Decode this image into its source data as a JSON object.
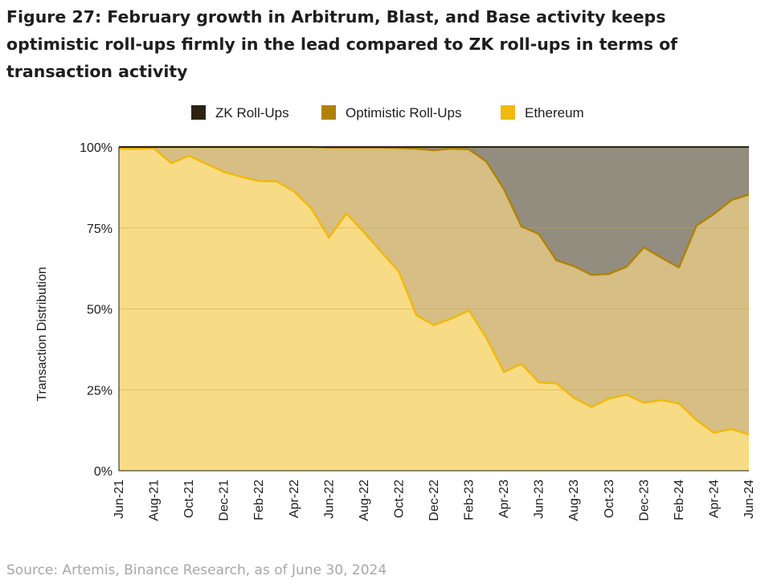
{
  "title": "Figure 27: February growth in Arbitrum, Blast, and Base activity keeps optimistic roll-ups firmly in the lead compared to ZK roll-ups in terms of transaction activity",
  "source": "Source: Artemis, Binance Research, as of June 30, 2024",
  "chart_data": {
    "type": "area",
    "stacked": true,
    "normalized": true,
    "ylabel": "Transaction Distribution",
    "ylim": [
      0,
      100
    ],
    "yticks": [
      "0%",
      "25%",
      "50%",
      "75%",
      "100%"
    ],
    "legend_position": "top-center",
    "grid": "horizontal",
    "x": [
      "Jun-21",
      "Jul-21",
      "Aug-21",
      "Sep-21",
      "Oct-21",
      "Nov-21",
      "Dec-21",
      "Jan-22",
      "Feb-22",
      "Mar-22",
      "Apr-22",
      "May-22",
      "Jun-22",
      "Jul-22",
      "Aug-22",
      "Sep-22",
      "Oct-22",
      "Nov-22",
      "Dec-22",
      "Jan-23",
      "Feb-23",
      "Mar-23",
      "Apr-23",
      "May-23",
      "Jun-23",
      "Jul-23",
      "Aug-23",
      "Sep-23",
      "Oct-23",
      "Nov-23",
      "Dec-23",
      "Jan-24",
      "Feb-24",
      "Mar-24",
      "Apr-24",
      "May-24",
      "Jun-24"
    ],
    "xtick_labels": [
      "Jun-21",
      "Aug-21",
      "Oct-21",
      "Dec-21",
      "Feb-22",
      "Apr-22",
      "Jun-22",
      "Aug-22",
      "Oct-22",
      "Dec-22",
      "Feb-23",
      "Apr-23",
      "Jun-23",
      "Aug-23",
      "Oct-23",
      "Dec-23",
      "Feb-24",
      "Apr-24",
      "Jun-24"
    ],
    "series": [
      {
        "name": "Ethereum",
        "color": "#f0b90b",
        "fill": "#f8db85",
        "values": [
          99.5,
          99.4,
          99.6,
          95,
          97.3,
          94.8,
          92.3,
          90.8,
          89.5,
          89.4,
          86.3,
          81,
          72,
          79.5,
          73.7,
          67.5,
          61.5,
          48,
          45,
          47,
          49.5,
          41,
          30.5,
          33,
          27.3,
          27,
          22.5,
          19.7,
          22.3,
          23.5,
          21,
          21.8,
          20.8,
          15.7,
          11.7,
          12.9,
          11.2
        ]
      },
      {
        "name": "Optimistic Roll-Ups",
        "color": "#b08206",
        "fill": "#d6be84",
        "values": [
          0.5,
          0.6,
          0.4,
          5,
          2.7,
          5.2,
          7.7,
          9.2,
          10.5,
          10.6,
          13.7,
          19,
          27.8,
          20.3,
          26.1,
          32.3,
          38.2,
          51.5,
          54,
          52.5,
          49.8,
          54.5,
          56.5,
          42.5,
          45.8,
          38,
          40.7,
          40.8,
          38.5,
          39.5,
          48,
          44,
          42,
          60,
          67.6,
          70.7,
          74.1
        ]
      },
      {
        "name": "ZK Roll-Ups",
        "color": "#2c2312",
        "fill": "#928d7e",
        "values": [
          0,
          0,
          0,
          0,
          0,
          0,
          0,
          0,
          0,
          0,
          0,
          0,
          0.2,
          0.2,
          0.2,
          0.2,
          0.3,
          0.5,
          1,
          0.5,
          0.7,
          4.5,
          13,
          24.5,
          26.9,
          35,
          36.8,
          39.5,
          39.2,
          37,
          31,
          34.2,
          37.2,
          24.3,
          20.7,
          16.4,
          14.7
        ]
      }
    ]
  }
}
